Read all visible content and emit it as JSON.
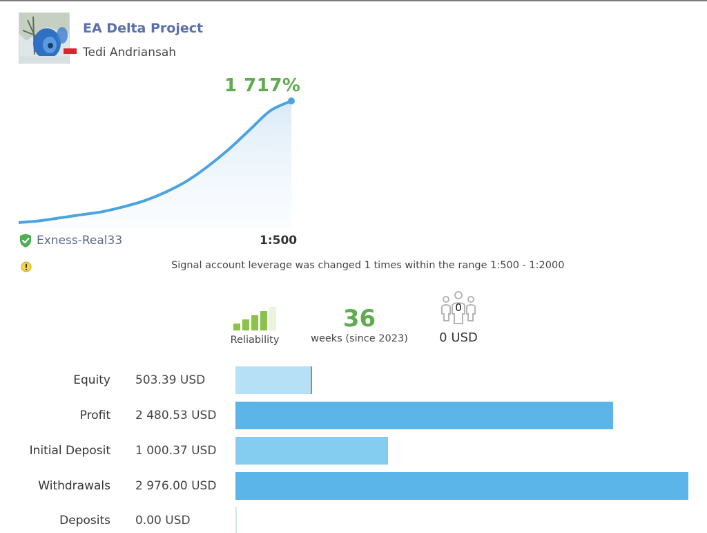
{
  "header": {
    "title": "EA Delta Project",
    "author": "Tedi Andriansah",
    "country_flag": "indonesia-flag"
  },
  "growth": {
    "value_label": "1 717%",
    "line_color": "#4ba3df",
    "label_color": "#5fac4f",
    "curve": [
      0,
      1.5,
      4,
      6.5,
      9,
      13,
      18,
      25,
      34,
      46,
      60,
      76,
      92,
      100
    ]
  },
  "account": {
    "broker": "Exness-Real33",
    "leverage": "1:500",
    "verified_icon": "shield-check-icon"
  },
  "warning": {
    "icon": "warning-icon",
    "text": "Signal account leverage was changed 1 times within the range 1:500 - 1:2000"
  },
  "stats": {
    "reliability": {
      "label": "Reliability",
      "level": 4,
      "max": 5
    },
    "weeks": {
      "value": "36",
      "label": "weeks (since 2023)"
    },
    "subscribers": {
      "count": "0",
      "funds": "0 USD",
      "icon": "subscribers-icon"
    }
  },
  "financials": {
    "max_value": 2976.0,
    "rows": [
      {
        "label": "Equity",
        "value": "503.39 USD",
        "amount": 503.39,
        "color": "#b5e0f5"
      },
      {
        "label": "Profit",
        "value": "2 480.53 USD",
        "amount": 2480.53,
        "color": "#5cb5e8"
      },
      {
        "label": "Initial Deposit",
        "value": "1 000.37 USD",
        "amount": 1000.37,
        "color": "#84ccf0"
      },
      {
        "label": "Withdrawals",
        "value": "2 976.00 USD",
        "amount": 2976.0,
        "color": "#5cb5e8"
      },
      {
        "label": "Deposits",
        "value": "0.00 USD",
        "amount": 0.0,
        "color": "#cfe9ea"
      }
    ]
  }
}
